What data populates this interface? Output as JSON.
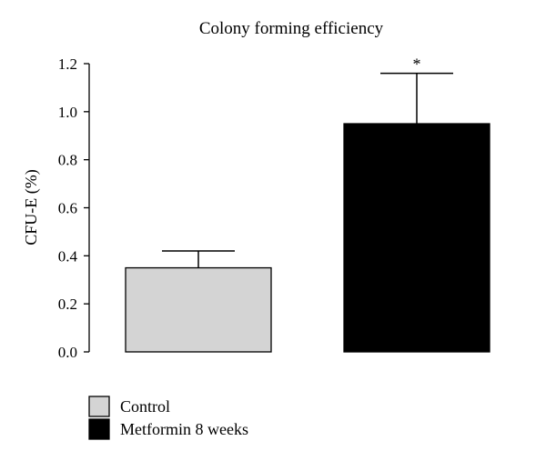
{
  "chart_data": {
    "type": "bar",
    "title": "Colony forming efficiency",
    "xlabel": "",
    "ylabel": "CFU-E (%)",
    "ylim": [
      0,
      1.2
    ],
    "yticks": [
      "0.0",
      "0.2",
      "0.4",
      "0.6",
      "0.8",
      "1.0",
      "1.2"
    ],
    "grid": false,
    "legend_position": "bottom-left",
    "categories": [
      "Control",
      "Metformin 8 weeks"
    ],
    "series": [
      {
        "values": [
          0.35,
          0.95
        ],
        "errors": [
          0.07,
          0.21
        ],
        "colors": [
          "#d4d4d4",
          "#000000"
        ]
      }
    ],
    "annotations": [
      {
        "category": "Metformin 8 weeks",
        "text": "*"
      }
    ],
    "legend": [
      {
        "label": "Control",
        "color": "#d4d4d4"
      },
      {
        "label": "Metformin 8 weeks",
        "color": "#000000"
      }
    ]
  }
}
